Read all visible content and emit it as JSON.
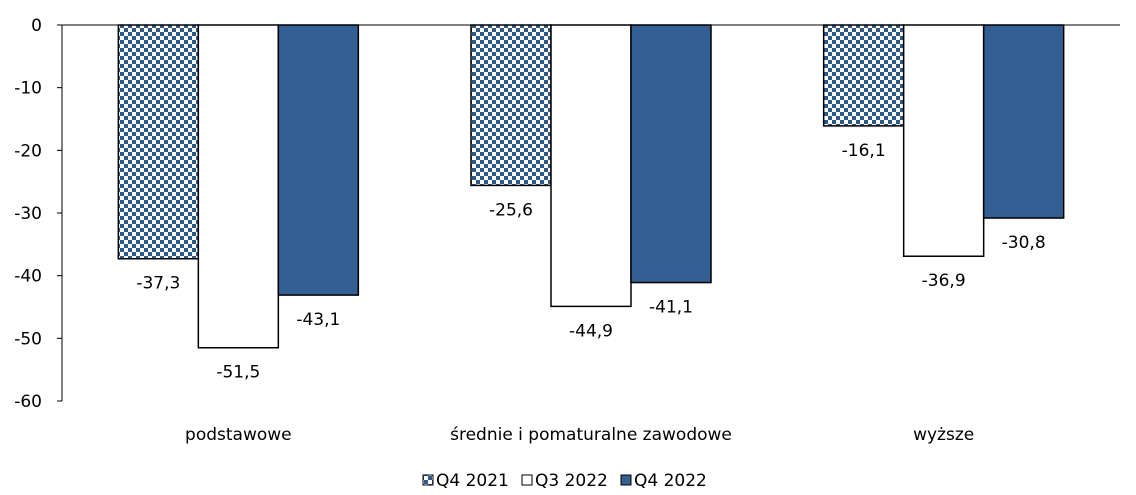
{
  "chart_data": {
    "type": "bar",
    "categories": [
      "podstawowe",
      "średnie i pomaturalne zawodowe",
      "wyższe"
    ],
    "series": [
      {
        "name": "Q4 2021",
        "values": [
          -37.3,
          -25.6,
          -16.1
        ],
        "fill": "pattern-checker",
        "color": "#2e5a8a"
      },
      {
        "name": "Q3 2022",
        "values": [
          -51.5,
          -44.9,
          -36.9
        ],
        "fill": "solid",
        "color": "#ffffff"
      },
      {
        "name": "Q4 2022",
        "values": [
          -43.1,
          -41.1,
          -30.8
        ],
        "fill": "solid",
        "color": "#345f93"
      }
    ],
    "data_labels": [
      [
        "-37,3",
        "-25,6",
        "-16,1"
      ],
      [
        "-51,5",
        "-44,9",
        "-36,9"
      ],
      [
        "-43,1",
        "-41,1",
        "-30,8"
      ]
    ],
    "yticks": [
      0,
      -10,
      -20,
      -30,
      -40,
      -50,
      -60
    ],
    "ylim": [
      -60,
      0
    ],
    "grid": false,
    "legend_position": "bottom",
    "title": "",
    "xlabel": "",
    "ylabel": ""
  }
}
